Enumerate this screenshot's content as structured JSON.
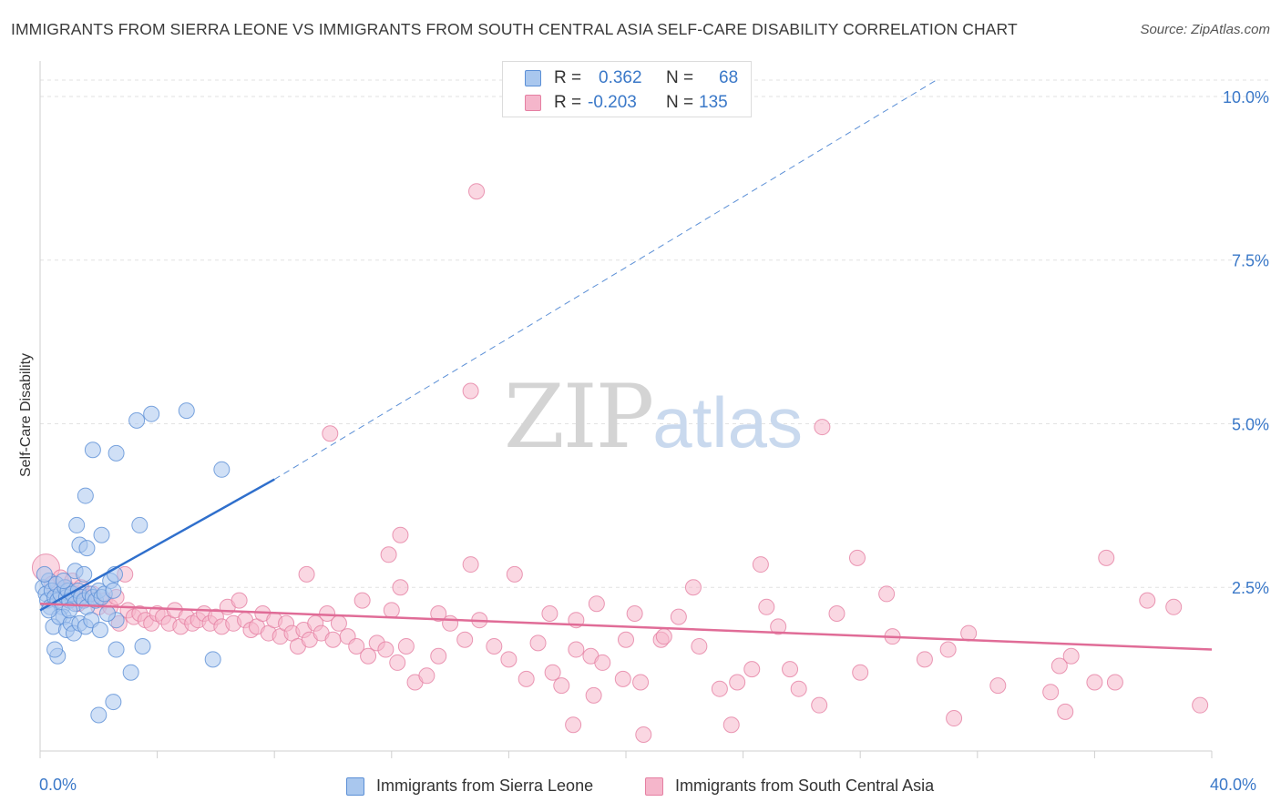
{
  "title": "IMMIGRANTS FROM SIERRA LEONE VS IMMIGRANTS FROM SOUTH CENTRAL ASIA SELF-CARE DISABILITY CORRELATION CHART",
  "source": "Source: ZipAtlas.com",
  "watermark": {
    "part1": "ZIP",
    "part2": "atlas"
  },
  "legend": {
    "rows": [
      {
        "r_label": "R =",
        "r_value": "0.362",
        "n_label": "N =",
        "n_value": "68"
      },
      {
        "r_label": "R =",
        "r_value": "-0.203",
        "n_label": "N =",
        "n_value": "135"
      }
    ]
  },
  "bottom_legend": [
    "Immigrants from Sierra Leone",
    "Immigrants from South Central Asia"
  ],
  "colors": {
    "blue_fill": "#a9c7ee",
    "blue_stroke": "#5b8fd6",
    "blue_line": "#2f6fcc",
    "pink_fill": "#f5b6cb",
    "pink_stroke": "#e57fa2",
    "pink_line": "#e06c97",
    "axis_text": "#3a78c8"
  },
  "chart_data": {
    "type": "scatter",
    "title": "IMMIGRANTS FROM SIERRA LEONE VS IMMIGRANTS FROM SOUTH CENTRAL ASIA SELF-CARE DISABILITY CORRELATION CHART",
    "xlabel": "",
    "ylabel": "Self-Care Disability",
    "xlim": [
      0,
      40
    ],
    "ylim": [
      0,
      10.5
    ],
    "x_tick_labels": [
      "0.0%",
      "40.0%"
    ],
    "y_ticks": [
      2.5,
      5.0,
      7.5,
      10.0
    ],
    "y_tick_labels": [
      "2.5%",
      "5.0%",
      "7.5%",
      "10.0%"
    ],
    "grid": true,
    "legend_position": "top-center",
    "series": [
      {
        "name": "Immigrants from Sierra Leone",
        "r": 0.362,
        "n": 68,
        "trend": {
          "x0": 0,
          "y0": 2.15,
          "x1": 8.0,
          "y1": 4.15,
          "dash_to_x": 30.6,
          "dash_to_y": 10.25
        },
        "points": [
          [
            0.1,
            2.5
          ],
          [
            0.2,
            2.4
          ],
          [
            0.25,
            2.3
          ],
          [
            0.3,
            2.6
          ],
          [
            0.35,
            2.2
          ],
          [
            0.4,
            2.45
          ],
          [
            0.5,
            2.35
          ],
          [
            0.55,
            2.55
          ],
          [
            0.6,
            2.3
          ],
          [
            0.7,
            2.4
          ],
          [
            0.75,
            2.2
          ],
          [
            0.8,
            2.05
          ],
          [
            0.85,
            2.5
          ],
          [
            0.9,
            2.35
          ],
          [
            0.95,
            2.45
          ],
          [
            1.0,
            2.3
          ],
          [
            1.1,
            2.4
          ],
          [
            1.2,
            2.25
          ],
          [
            1.3,
            2.45
          ],
          [
            1.4,
            2.35
          ],
          [
            1.5,
            2.3
          ],
          [
            1.6,
            2.2
          ],
          [
            1.7,
            2.4
          ],
          [
            1.8,
            2.35
          ],
          [
            1.9,
            2.3
          ],
          [
            2.0,
            2.45
          ],
          [
            2.1,
            2.35
          ],
          [
            2.2,
            2.4
          ],
          [
            2.4,
            2.6
          ],
          [
            2.5,
            2.45
          ],
          [
            0.45,
            1.9
          ],
          [
            0.65,
            2.05
          ],
          [
            0.9,
            1.85
          ],
          [
            1.05,
            1.95
          ],
          [
            1.15,
            1.8
          ],
          [
            1.35,
            1.95
          ],
          [
            1.55,
            1.9
          ],
          [
            1.75,
            2.0
          ],
          [
            2.05,
            1.85
          ],
          [
            2.6,
            2.0
          ],
          [
            0.6,
            1.45
          ],
          [
            1.2,
            2.75
          ],
          [
            1.35,
            3.15
          ],
          [
            1.5,
            2.7
          ],
          [
            1.6,
            3.1
          ],
          [
            1.25,
            3.45
          ],
          [
            1.55,
            3.9
          ],
          [
            2.1,
            3.3
          ],
          [
            2.55,
            2.7
          ],
          [
            3.4,
            3.45
          ],
          [
            1.8,
            4.6
          ],
          [
            2.6,
            4.55
          ],
          [
            3.3,
            5.05
          ],
          [
            3.8,
            5.15
          ],
          [
            5.0,
            5.2
          ],
          [
            6.2,
            4.3
          ],
          [
            2.6,
            1.55
          ],
          [
            3.5,
            1.6
          ],
          [
            3.1,
            1.2
          ],
          [
            5.9,
            1.4
          ],
          [
            2.0,
            0.55
          ],
          [
            2.5,
            0.75
          ],
          [
            0.15,
            2.7
          ],
          [
            0.3,
            2.15
          ],
          [
            0.5,
            1.55
          ],
          [
            1.0,
            2.15
          ],
          [
            2.3,
            2.1
          ],
          [
            0.8,
            2.6
          ]
        ]
      },
      {
        "name": "Immigrants from South Central Asia",
        "r": -0.203,
        "n": 135,
        "trend": {
          "x0": 0,
          "y0": 2.25,
          "x1": 40,
          "y1": 1.55
        },
        "points": [
          [
            0.2,
            2.8
          ],
          [
            0.4,
            2.55
          ],
          [
            0.6,
            2.45
          ],
          [
            0.7,
            2.65
          ],
          [
            0.9,
            2.5
          ],
          [
            1.0,
            2.3
          ],
          [
            1.1,
            2.6
          ],
          [
            1.2,
            2.4
          ],
          [
            1.3,
            2.25
          ],
          [
            1.4,
            2.5
          ],
          [
            1.6,
            2.35
          ],
          [
            1.8,
            2.4
          ],
          [
            2.0,
            2.2
          ],
          [
            2.2,
            2.3
          ],
          [
            2.4,
            2.2
          ],
          [
            2.6,
            2.35
          ],
          [
            2.7,
            1.95
          ],
          [
            3.0,
            2.15
          ],
          [
            3.2,
            2.05
          ],
          [
            3.4,
            2.1
          ],
          [
            3.6,
            2.0
          ],
          [
            3.8,
            1.95
          ],
          [
            4.0,
            2.1
          ],
          [
            4.2,
            2.05
          ],
          [
            4.4,
            1.95
          ],
          [
            4.6,
            2.15
          ],
          [
            4.8,
            1.9
          ],
          [
            5.0,
            2.05
          ],
          [
            5.2,
            1.95
          ],
          [
            5.4,
            2.0
          ],
          [
            5.6,
            2.1
          ],
          [
            5.8,
            1.95
          ],
          [
            6.0,
            2.05
          ],
          [
            6.2,
            1.9
          ],
          [
            6.4,
            2.2
          ],
          [
            6.6,
            1.95
          ],
          [
            6.8,
            2.3
          ],
          [
            7.0,
            2.0
          ],
          [
            7.2,
            1.85
          ],
          [
            7.4,
            1.9
          ],
          [
            7.6,
            2.1
          ],
          [
            7.8,
            1.8
          ],
          [
            8.0,
            2.0
          ],
          [
            8.2,
            1.75
          ],
          [
            8.4,
            1.95
          ],
          [
            8.6,
            1.8
          ],
          [
            8.8,
            1.6
          ],
          [
            9.0,
            1.85
          ],
          [
            9.2,
            1.7
          ],
          [
            9.4,
            1.95
          ],
          [
            9.6,
            1.8
          ],
          [
            9.8,
            2.1
          ],
          [
            10.0,
            1.7
          ],
          [
            10.2,
            1.95
          ],
          [
            10.5,
            1.75
          ],
          [
            10.8,
            1.6
          ],
          [
            11.0,
            2.3
          ],
          [
            11.2,
            1.45
          ],
          [
            11.5,
            1.65
          ],
          [
            11.8,
            1.55
          ],
          [
            12.0,
            2.15
          ],
          [
            12.2,
            1.35
          ],
          [
            12.5,
            1.6
          ],
          [
            12.8,
            1.05
          ],
          [
            13.2,
            1.15
          ],
          [
            13.6,
            1.45
          ],
          [
            14.0,
            1.95
          ],
          [
            14.5,
            1.7
          ],
          [
            15.0,
            2.0
          ],
          [
            15.5,
            1.6
          ],
          [
            16.0,
            1.4
          ],
          [
            16.6,
            1.1
          ],
          [
            17.0,
            1.65
          ],
          [
            17.5,
            1.2
          ],
          [
            17.8,
            1.0
          ],
          [
            18.3,
            1.55
          ],
          [
            18.8,
            1.45
          ],
          [
            19.2,
            1.35
          ],
          [
            20.0,
            1.7
          ],
          [
            20.5,
            1.05
          ],
          [
            21.2,
            1.7
          ],
          [
            21.8,
            2.05
          ],
          [
            22.5,
            1.6
          ],
          [
            23.2,
            0.95
          ],
          [
            23.8,
            1.05
          ],
          [
            24.3,
            1.25
          ],
          [
            24.8,
            2.2
          ],
          [
            25.2,
            1.9
          ],
          [
            25.6,
            1.25
          ],
          [
            25.9,
            0.95
          ],
          [
            27.2,
            2.1
          ],
          [
            28.0,
            1.2
          ],
          [
            29.1,
            1.75
          ],
          [
            30.2,
            1.4
          ],
          [
            31.0,
            1.55
          ],
          [
            31.7,
            1.8
          ],
          [
            32.7,
            1.0
          ],
          [
            34.5,
            0.9
          ],
          [
            34.8,
            1.3
          ],
          [
            35.2,
            1.45
          ],
          [
            36.0,
            1.05
          ],
          [
            36.7,
            1.05
          ],
          [
            37.8,
            2.3
          ],
          [
            38.7,
            2.2
          ],
          [
            39.6,
            0.7
          ],
          [
            2.9,
            2.7
          ],
          [
            9.1,
            2.7
          ],
          [
            12.3,
            2.5
          ],
          [
            13.6,
            2.1
          ],
          [
            14.7,
            2.85
          ],
          [
            16.2,
            2.7
          ],
          [
            17.4,
            2.1
          ],
          [
            18.3,
            2.0
          ],
          [
            19.0,
            2.25
          ],
          [
            20.3,
            2.1
          ],
          [
            21.3,
            1.75
          ],
          [
            22.3,
            2.5
          ],
          [
            24.6,
            2.85
          ],
          [
            27.9,
            2.95
          ],
          [
            28.9,
            2.4
          ],
          [
            36.4,
            2.95
          ],
          [
            31.2,
            0.5
          ],
          [
            35.0,
            0.6
          ],
          [
            11.9,
            3.0
          ],
          [
            12.3,
            3.3
          ],
          [
            9.9,
            4.85
          ],
          [
            14.9,
            8.55
          ],
          [
            14.7,
            5.5
          ],
          [
            26.7,
            4.95
          ],
          [
            20.6,
            0.25
          ],
          [
            18.2,
            0.4
          ],
          [
            18.9,
            0.85
          ],
          [
            19.9,
            1.1
          ],
          [
            23.6,
            0.4
          ],
          [
            26.6,
            0.7
          ]
        ]
      }
    ]
  }
}
